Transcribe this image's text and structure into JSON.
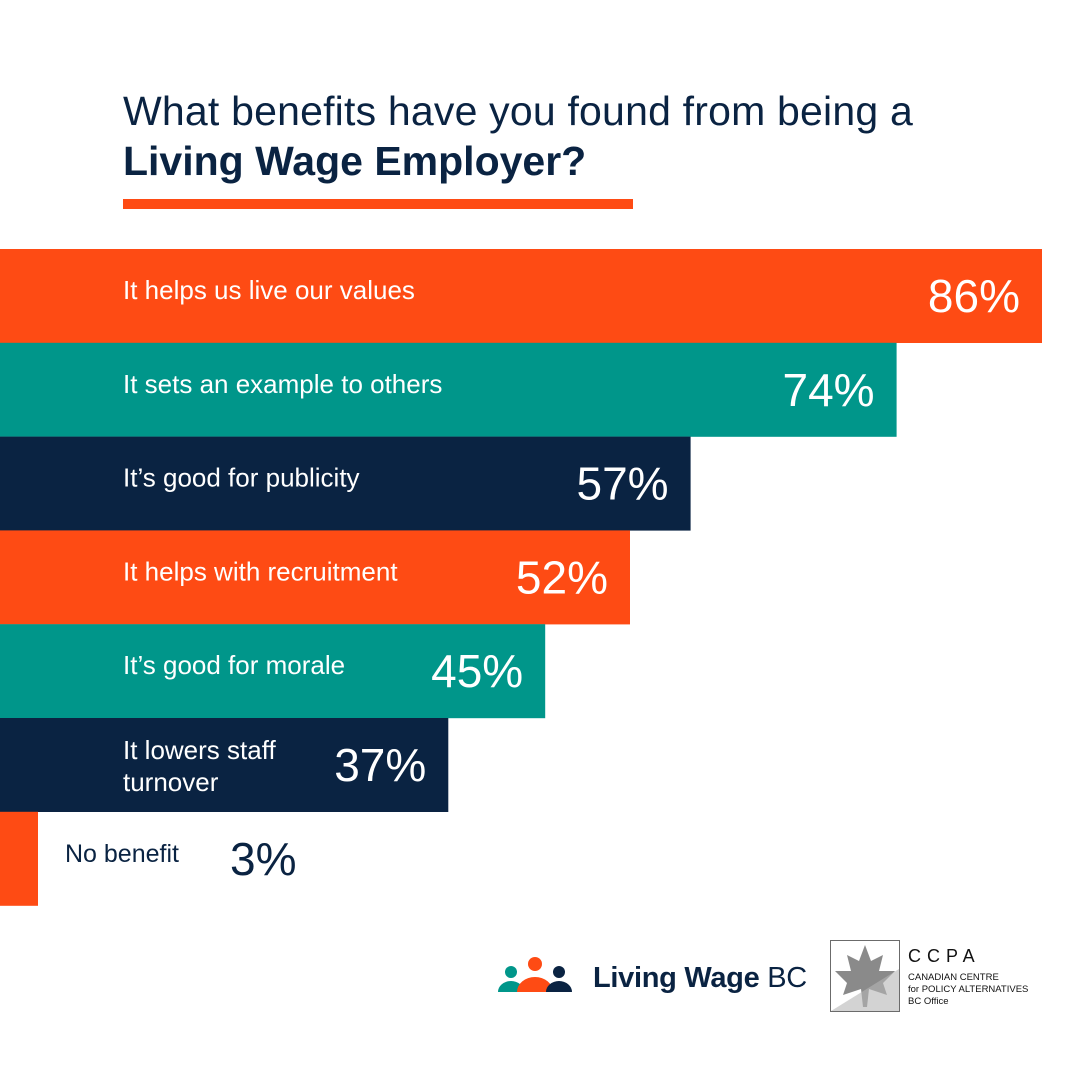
{
  "title": {
    "line1": "What benefits have you found from being a",
    "line2": "Living Wage Employer?"
  },
  "colors": {
    "navy": "#0a2342",
    "orange": "#fe4b14",
    "teal": "#00968a"
  },
  "chart_data": {
    "type": "bar",
    "orientation": "horizontal",
    "unit": "%",
    "categories": [
      "It helps us live our values",
      "It sets an example to others",
      "It’s good for publicity",
      "It helps with recruitment",
      "It’s good for morale",
      "It lowers staff turnover",
      "No benefit"
    ],
    "values": [
      86,
      74,
      57,
      52,
      45,
      37,
      3
    ],
    "value_labels": [
      "86%",
      "74%",
      "57%",
      "52%",
      "45%",
      "37%",
      "3%"
    ],
    "bar_colors": [
      "#fe4b14",
      "#00968a",
      "#0a2342",
      "#fe4b14",
      "#00968a",
      "#0a2342",
      "#fe4b14"
    ],
    "xlim": [
      0,
      100
    ]
  },
  "logos": {
    "living_wage": {
      "bold": "Living Wage",
      "light": "BC"
    },
    "ccpa": {
      "name": "CCPA",
      "line1": "CANADIAN CENTRE",
      "line2": "for POLICY ALTERNATIVES",
      "line3": "BC Office"
    }
  }
}
